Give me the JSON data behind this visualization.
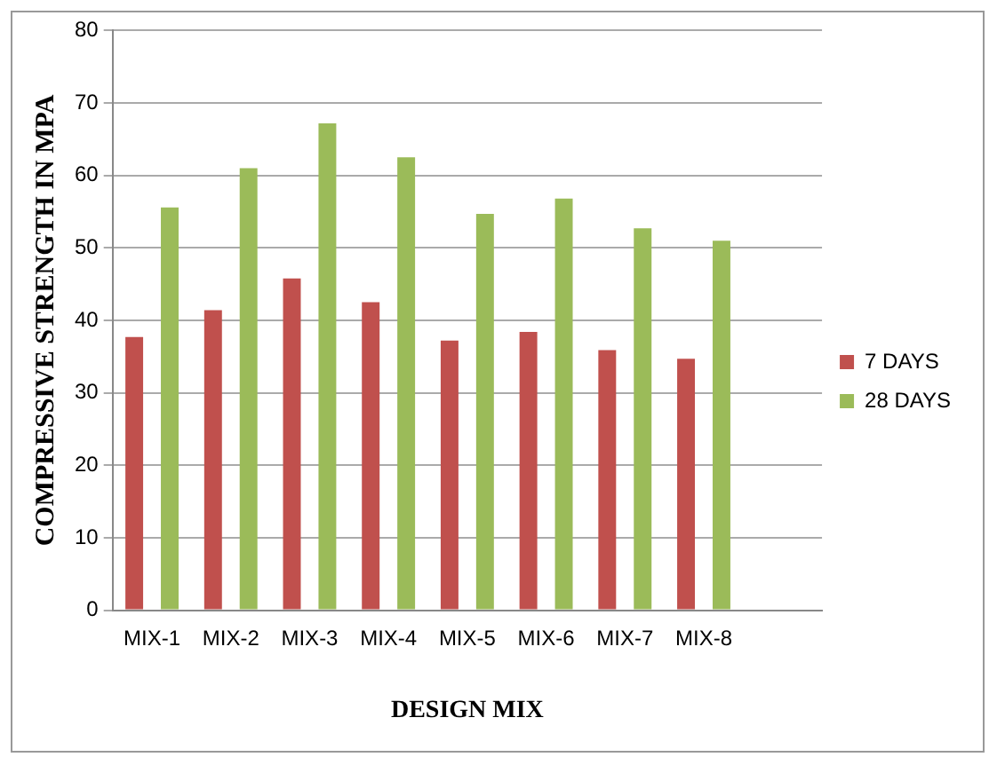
{
  "chart_data": {
    "type": "bar",
    "xlabel": "DESIGN MIX",
    "ylabel": "COMPRESSIVE STRENGTH IN MPA",
    "categories": [
      "MIX-1",
      "MIX-2",
      "MIX-3",
      "MIX-4",
      "MIX-5",
      "MIX-6",
      "MIX-7",
      "MIX-8",
      null
    ],
    "series": [
      {
        "name": "7 DAYS",
        "color": "#c0504d",
        "values": [
          37.7,
          41.4,
          45.8,
          42.5,
          37.2,
          38.4,
          35.9,
          34.7,
          null
        ]
      },
      {
        "name": "28 DAYS",
        "color": "#9bbb59",
        "values": [
          55.6,
          61.0,
          67.2,
          62.5,
          54.7,
          56.8,
          52.7,
          51.0,
          null
        ]
      }
    ],
    "ylim": [
      0,
      80
    ],
    "yticks": [
      0,
      10,
      20,
      30,
      40,
      50,
      60,
      70,
      80
    ],
    "grid": "y",
    "legend": "right"
  }
}
